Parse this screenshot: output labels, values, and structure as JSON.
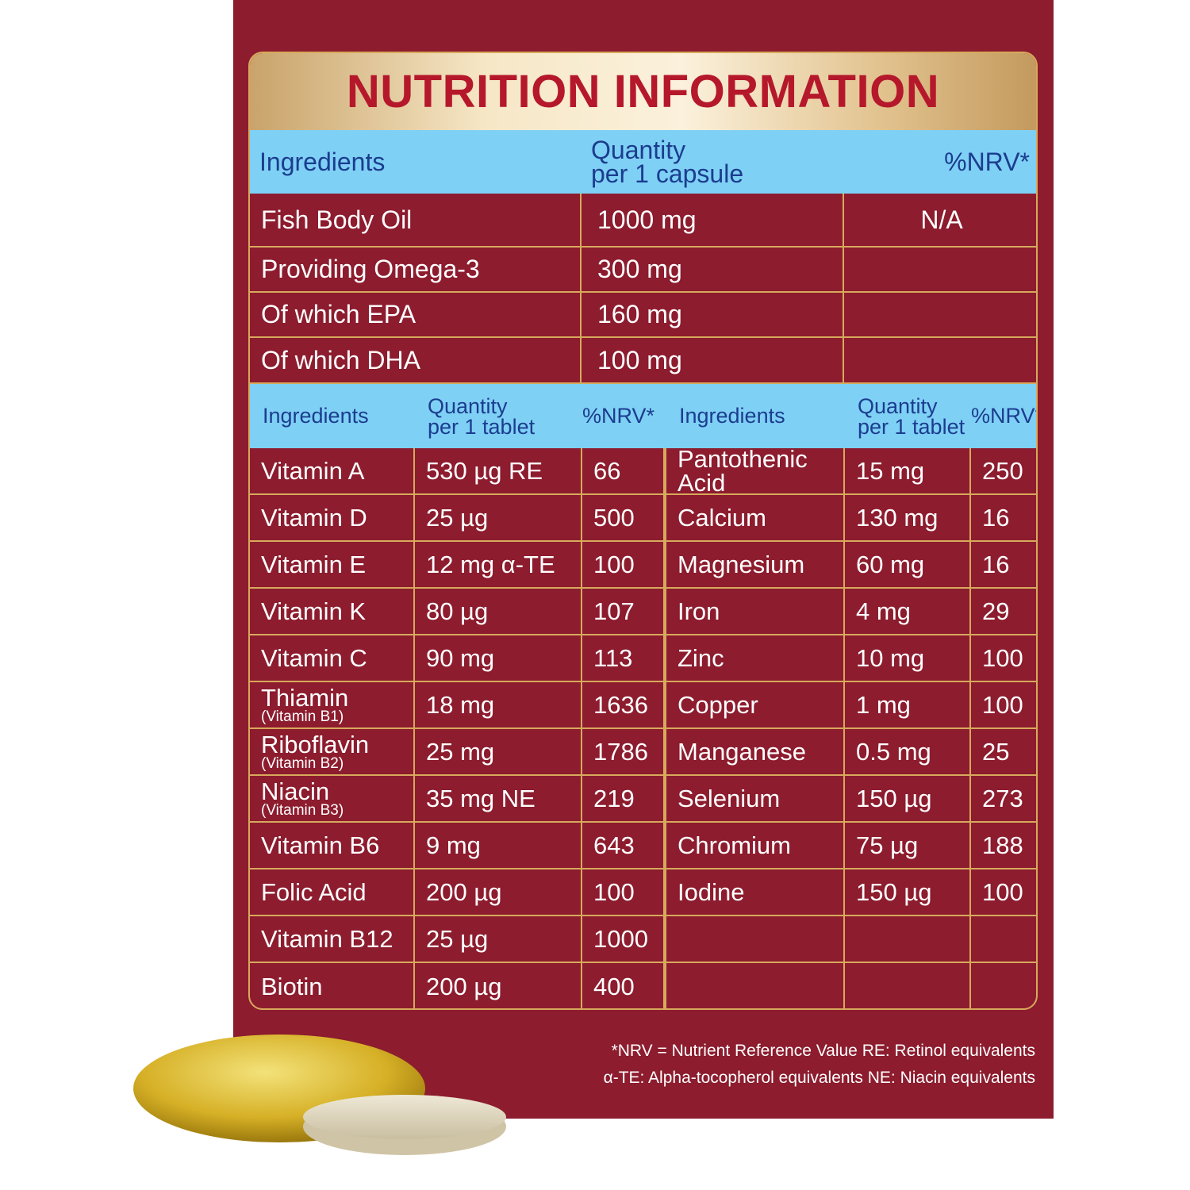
{
  "title": "NUTRITION INFORMATION",
  "capsule_table": {
    "header": [
      [
        "Ingredients"
      ],
      [
        "Quantity",
        "per 1 capsule"
      ],
      [
        "%NRV*"
      ]
    ],
    "rows": [
      [
        "Fish Body Oil",
        "1000 mg",
        "N/A"
      ],
      [
        "Providing Omega-3",
        "300 mg"
      ],
      [
        "Of which EPA",
        "160 mg"
      ],
      [
        "Of which DHA",
        "100 mg"
      ]
    ]
  },
  "tablet_table": {
    "header": [
      [
        "Ingredients"
      ],
      [
        "Quantity",
        "per 1 tablet"
      ],
      [
        "%NRV*"
      ],
      [
        "Ingredients"
      ],
      [
        "Quantity",
        "per 1 tablet"
      ],
      [
        "%NRV*"
      ]
    ],
    "left_rows": [
      [
        {
          "name": "Vitamin A"
        },
        "530 µg RE",
        "66"
      ],
      [
        {
          "name": "Vitamin D"
        },
        "25 µg",
        "500"
      ],
      [
        {
          "name": "Vitamin E"
        },
        "12 mg α-TE",
        "100"
      ],
      [
        {
          "name": "Vitamin K"
        },
        "80 µg",
        "107"
      ],
      [
        {
          "name": "Vitamin C"
        },
        "90 mg",
        "113"
      ],
      [
        {
          "name": "Thiamin",
          "note": "(Vitamin B1)"
        },
        "18 mg",
        "1636"
      ],
      [
        {
          "name": "Riboflavin",
          "note": "(Vitamin B2)"
        },
        "25 mg",
        "1786"
      ],
      [
        {
          "name": "Niacin",
          "note": "(Vitamin B3)"
        },
        "35 mg NE",
        "219"
      ],
      [
        {
          "name": "Vitamin B6"
        },
        "9 mg",
        "643"
      ],
      [
        {
          "name": "Folic Acid"
        },
        "200 µg",
        "100"
      ],
      [
        {
          "name": "Vitamin B12"
        },
        "25 µg",
        "1000"
      ],
      [
        {
          "name": "Biotin"
        },
        "200 µg",
        "400"
      ]
    ],
    "right_rows": [
      [
        {
          "name": "Pantothenic Acid"
        },
        "15 mg",
        "250"
      ],
      [
        {
          "name": "Calcium"
        },
        "130 mg",
        "16"
      ],
      [
        {
          "name": "Magnesium"
        },
        "60 mg",
        "16"
      ],
      [
        {
          "name": "Iron"
        },
        "4 mg",
        "29"
      ],
      [
        {
          "name": "Zinc"
        },
        "10 mg",
        "100"
      ],
      [
        {
          "name": "Copper"
        },
        "1 mg",
        "100"
      ],
      [
        {
          "name": "Manganese"
        },
        "0.5 mg",
        "25"
      ],
      [
        {
          "name": "Selenium"
        },
        "150 µg",
        "273"
      ],
      [
        {
          "name": "Chromium"
        },
        "75 µg",
        "188"
      ],
      [
        {
          "name": "Iodine"
        },
        "150 µg",
        "100"
      ]
    ]
  },
  "footnotes": [
    "*NRV = Nutrient Reference Value RE: Retinol equivalents",
    "α-TE: Alpha-tocopherol equivalents NE: Niacin equivalents"
  ]
}
